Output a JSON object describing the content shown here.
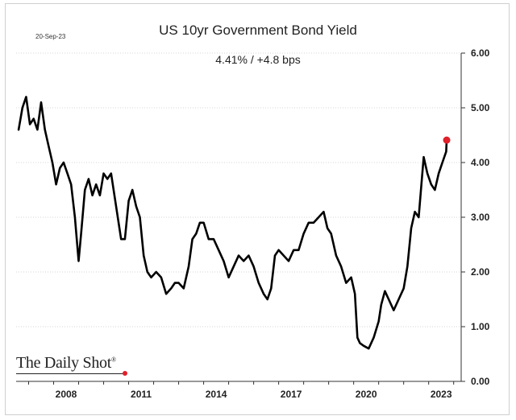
{
  "header": {
    "date": "20-Sep-23",
    "title": "US 10yr Government Bond Yield",
    "subtitle": "4.41%  /  +4.8 bps"
  },
  "brand": {
    "name": "The Daily Shot",
    "mark": "®"
  },
  "colors": {
    "line": "#000000",
    "marker": "#e0202a",
    "grid": "#c8c8c8",
    "axis": "#333333"
  },
  "chart_data": {
    "type": "line",
    "title": "US 10yr Government Bond Yield",
    "xlabel": "",
    "ylabel": "",
    "xlim": [
      2006.5,
      2024.3
    ],
    "ylim": [
      0,
      6
    ],
    "yticks": [
      0,
      1,
      2,
      3,
      4,
      5,
      6
    ],
    "ytick_labels": [
      "0.00",
      "1.00",
      "2.00",
      "3.00",
      "4.00",
      "5.00",
      "6.00"
    ],
    "xticks": [
      2008,
      2011,
      2014,
      2017,
      2020,
      2023
    ],
    "xtick_labels": [
      "2008",
      "2011",
      "2014",
      "2017",
      "2020",
      "2023"
    ],
    "grid": "horizontal",
    "legend": "none",
    "series": [
      {
        "x": [
          2006.6,
          2006.75,
          2006.9,
          2007.05,
          2007.2,
          2007.35,
          2007.5,
          2007.65,
          2007.8,
          2007.95,
          2008.1,
          2008.25,
          2008.4,
          2008.55,
          2008.7,
          2008.85,
          2009.0,
          2009.1,
          2009.25,
          2009.4,
          2009.55,
          2009.7,
          2009.85,
          2010.0,
          2010.15,
          2010.3,
          2010.5,
          2010.7,
          2010.85,
          2011.0,
          2011.15,
          2011.3,
          2011.45,
          2011.6,
          2011.75,
          2011.9,
          2012.1,
          2012.3,
          2012.5,
          2012.7,
          2012.85,
          2013.0,
          2013.2,
          2013.4,
          2013.55,
          2013.7,
          2013.85,
          2014.0,
          2014.2,
          2014.4,
          2014.6,
          2014.8,
          2015.0,
          2015.2,
          2015.4,
          2015.6,
          2015.8,
          2016.0,
          2016.2,
          2016.4,
          2016.55,
          2016.7,
          2016.85,
          2017.0,
          2017.2,
          2017.4,
          2017.6,
          2017.8,
          2018.0,
          2018.2,
          2018.4,
          2018.6,
          2018.8,
          2018.95,
          2019.1,
          2019.3,
          2019.5,
          2019.7,
          2019.9,
          2020.05,
          2020.15,
          2020.25,
          2020.4,
          2020.6,
          2020.8,
          2021.0,
          2021.1,
          2021.25,
          2021.4,
          2021.6,
          2021.8,
          2022.0,
          2022.15,
          2022.3,
          2022.45,
          2022.6,
          2022.8,
          2022.95,
          2023.1,
          2023.25,
          2023.4,
          2023.55,
          2023.7,
          2023.72
        ],
        "y": [
          4.6,
          5.0,
          5.2,
          4.7,
          4.8,
          4.6,
          5.1,
          4.6,
          4.3,
          4.0,
          3.6,
          3.9,
          4.0,
          3.8,
          3.6,
          3.0,
          2.2,
          2.7,
          3.5,
          3.7,
          3.4,
          3.6,
          3.4,
          3.8,
          3.7,
          3.8,
          3.2,
          2.6,
          2.6,
          3.3,
          3.5,
          3.2,
          3.0,
          2.3,
          2.0,
          1.9,
          2.0,
          1.9,
          1.6,
          1.7,
          1.8,
          1.8,
          1.7,
          2.1,
          2.6,
          2.7,
          2.9,
          2.9,
          2.6,
          2.6,
          2.4,
          2.2,
          1.9,
          2.1,
          2.3,
          2.2,
          2.3,
          2.1,
          1.8,
          1.6,
          1.5,
          1.7,
          2.3,
          2.4,
          2.3,
          2.2,
          2.4,
          2.4,
          2.7,
          2.9,
          2.9,
          3.0,
          3.1,
          2.8,
          2.7,
          2.3,
          2.1,
          1.8,
          1.9,
          1.6,
          0.8,
          0.7,
          0.65,
          0.6,
          0.8,
          1.1,
          1.4,
          1.65,
          1.5,
          1.3,
          1.5,
          1.7,
          2.1,
          2.8,
          3.1,
          3.0,
          4.1,
          3.8,
          3.6,
          3.5,
          3.8,
          4.0,
          4.2,
          4.41
        ]
      }
    ],
    "last_point": {
      "x": 2023.72,
      "y": 4.41
    }
  }
}
